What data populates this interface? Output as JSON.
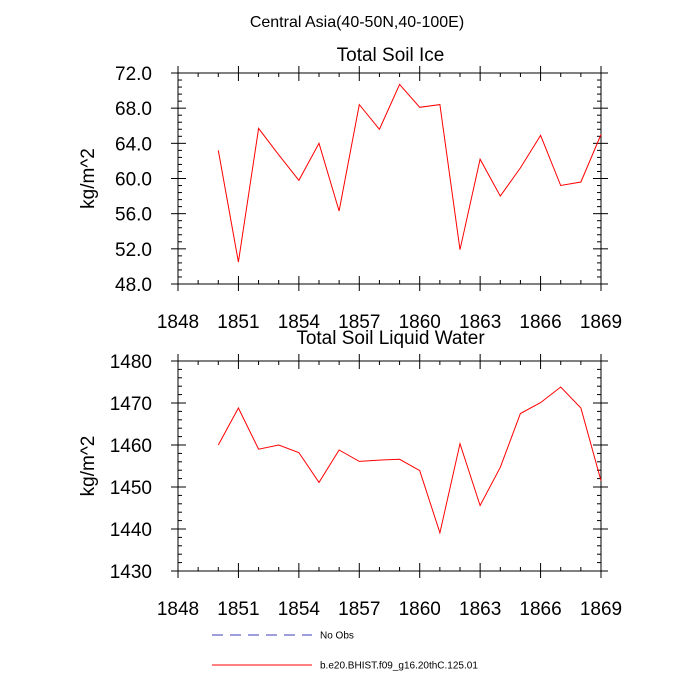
{
  "figure_title": "Central Asia(40-50N,40-100E)",
  "chart_data": [
    {
      "type": "line",
      "title": "Total Soil Ice",
      "xlabel": "",
      "ylabel": "kg/m^2",
      "xlim": [
        1848,
        1869
      ],
      "ylim": [
        48.0,
        72.0
      ],
      "xticks": [
        "1848",
        "1851",
        "1854",
        "1857",
        "1860",
        "1863",
        "1866",
        "1869"
      ],
      "yticks": [
        "48.0",
        "52.0",
        "56.0",
        "60.0",
        "64.0",
        "68.0",
        "72.0"
      ],
      "grid": false,
      "series": [
        {
          "name": "b.e20.BHIST.f09_g16.20thC.125.01",
          "color": "#ff0000",
          "x": [
            1850,
            1851,
            1852,
            1853,
            1854,
            1855,
            1856,
            1857,
            1858,
            1859,
            1860,
            1861,
            1862,
            1863,
            1864,
            1865,
            1866,
            1867,
            1868,
            1869
          ],
          "values": [
            63.2,
            50.5,
            65.7,
            62.7,
            59.8,
            64.0,
            56.3,
            68.4,
            65.6,
            70.7,
            68.1,
            68.4,
            51.9,
            62.2,
            58.0,
            61.2,
            64.9,
            59.2,
            59.6,
            65.0
          ]
        }
      ]
    },
    {
      "type": "line",
      "title": "Total Soil Liquid Water",
      "xlabel": "",
      "ylabel": "kg/m^2",
      "xlim": [
        1848,
        1869
      ],
      "ylim": [
        1430,
        1480
      ],
      "xticks": [
        "1848",
        "1851",
        "1854",
        "1857",
        "1860",
        "1863",
        "1866",
        "1869"
      ],
      "yticks": [
        "1430",
        "1440",
        "1450",
        "1460",
        "1470",
        "1480"
      ],
      "grid": false,
      "series": [
        {
          "name": "b.e20.BHIST.f09_g16.20thC.125.01",
          "color": "#ff0000",
          "x": [
            1850,
            1851,
            1852,
            1853,
            1854,
            1855,
            1856,
            1857,
            1858,
            1859,
            1860,
            1861,
            1862,
            1863,
            1864,
            1865,
            1866,
            1867,
            1868,
            1869
          ],
          "values": [
            1460.0,
            1468.8,
            1459.0,
            1460.0,
            1458.2,
            1451.1,
            1458.8,
            1456.1,
            1456.4,
            1456.6,
            1453.9,
            1439.1,
            1460.3,
            1445.6,
            1454.7,
            1467.5,
            1470.1,
            1473.8,
            1468.8,
            1451.5
          ]
        }
      ]
    }
  ],
  "legend": {
    "position": "bottom",
    "entries": [
      {
        "label": "No Obs",
        "color": "#3c3cb4",
        "style": "dashed"
      },
      {
        "label": "b.e20.BHIST.f09_g16.20thC.125.01",
        "color": "#ff0000",
        "style": "solid"
      }
    ]
  }
}
